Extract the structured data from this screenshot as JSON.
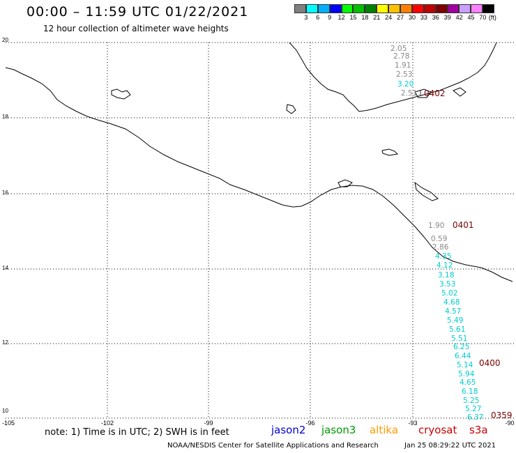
{
  "header": {
    "title": "00:00 – 11:59 UTC 01/22/2021",
    "subtitle": "12 hour collection of altimeter wave heights"
  },
  "scale": {
    "unit": "(ft)",
    "colors": [
      "#7f7f7f",
      "#00ffff",
      "#00b0ff",
      "#0000ff",
      "#00ff00",
      "#00c000",
      "#008000",
      "#ffff00",
      "#ffc000",
      "#ff8000",
      "#ff0000",
      "#c00000",
      "#800000",
      "#a000a0",
      "#c8a0ff",
      "#ff80ff",
      "#000000"
    ],
    "labels": [
      "3",
      "6",
      "9",
      "12",
      "15",
      "18",
      "21",
      "24",
      "27",
      "30",
      "33",
      "36",
      "39",
      "42",
      "45",
      "70"
    ]
  },
  "axes": {
    "lat_labels": [
      "20",
      "18",
      "16",
      "14",
      "12",
      "10"
    ],
    "lon_labels": [
      "-105",
      "-102",
      "-99",
      "-96",
      "-93",
      "-90"
    ]
  },
  "observations": [
    {
      "text": "2.05",
      "color": "#888888"
    },
    {
      "text": "2.78",
      "color": "#888888"
    },
    {
      "text": "1.91",
      "color": "#888888"
    },
    {
      "text": "2.53",
      "color": "#888888"
    },
    {
      "text": "3.20",
      "color": "#00cccc"
    },
    {
      "text": "2.51",
      "color": "#888888"
    },
    {
      "text": "1.90",
      "color": "#888888"
    },
    {
      "text": "0.59",
      "color": "#888888"
    },
    {
      "text": "2.86",
      "color": "#888888"
    },
    {
      "text": "4.35",
      "color": "#00cccc"
    },
    {
      "text": "4.12",
      "color": "#00cccc"
    },
    {
      "text": "3.18",
      "color": "#00cccc"
    },
    {
      "text": "3.53",
      "color": "#00cccc"
    },
    {
      "text": "5.02",
      "color": "#00cccc"
    },
    {
      "text": "4.68",
      "color": "#00cccc"
    },
    {
      "text": "4.57",
      "color": "#00cccc"
    },
    {
      "text": "5.49",
      "color": "#00cccc"
    },
    {
      "text": "5.61",
      "color": "#00cccc"
    },
    {
      "text": "5.51",
      "color": "#00cccc"
    },
    {
      "text": "6.25",
      "color": "#00cccc"
    },
    {
      "text": "6.44",
      "color": "#00cccc"
    },
    {
      "text": "5.14",
      "color": "#00cccc"
    },
    {
      "text": "5.94",
      "color": "#00cccc"
    },
    {
      "text": "4.65",
      "color": "#00cccc"
    },
    {
      "text": "6.18",
      "color": "#00cccc"
    },
    {
      "text": "5.25",
      "color": "#00cccc"
    },
    {
      "text": "5.27",
      "color": "#00cccc"
    },
    {
      "text": "6.37",
      "color": "#00cccc"
    }
  ],
  "track_times": [
    "0402",
    "0401",
    "0400",
    "0359"
  ],
  "note": "note: 1) Time is in UTC; 2) SWH is in feet",
  "satellites": [
    {
      "name": "jason2",
      "color": "#0000cc"
    },
    {
      "name": "jason3",
      "color": "#009900"
    },
    {
      "name": "altika",
      "color": "#ff9900"
    },
    {
      "name": "cryosat",
      "color": "#cc0000"
    },
    {
      "name": "s3a",
      "color": "#cc0000"
    }
  ],
  "footer": {
    "credit": "NOAA/NESDIS Center for Satellite Applications and Research",
    "timestamp": "Jan 25 08:29:22 UTC 2021"
  }
}
